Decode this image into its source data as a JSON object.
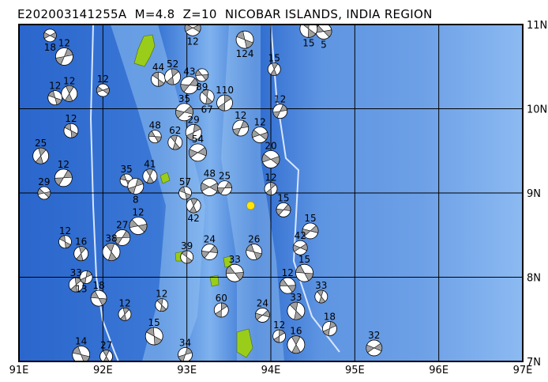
{
  "title": "E202003141255A  M=4.8  Z=10  NICOBAR ISLANDS, INDIA REGION",
  "axes": {
    "lon_ticks": [
      "91E",
      "92E",
      "93E",
      "94E",
      "95E",
      "96E",
      "97E"
    ],
    "lat_ticks": [
      "11N",
      "10N",
      "9N",
      "8N",
      "7N"
    ],
    "lon_range": [
      91,
      97
    ],
    "lat_range": [
      7,
      11
    ]
  },
  "colors": {
    "deep": "#1f5fc8",
    "mid": "#4a86dc",
    "shallow": "#9cc8f2",
    "land": "#9acd1a",
    "epicenter": "#ffe600",
    "compression": "#a0a0a0"
  },
  "epicenter": {
    "lon": 93.76,
    "lat": 8.85
  },
  "events": [
    {
      "lon": 91.37,
      "lat": 10.87,
      "depth": "18"
    },
    {
      "lon": 91.43,
      "lat": 10.13,
      "depth": "12"
    },
    {
      "lon": 91.6,
      "lat": 10.18,
      "depth": "12"
    },
    {
      "lon": 91.54,
      "lat": 10.62,
      "depth": "12"
    },
    {
      "lon": 92.0,
      "lat": 10.22,
      "depth": "12"
    },
    {
      "lon": 91.62,
      "lat": 9.74,
      "depth": "12"
    },
    {
      "lon": 91.26,
      "lat": 9.44,
      "depth": "25"
    },
    {
      "lon": 91.53,
      "lat": 9.18,
      "depth": "12"
    },
    {
      "lon": 91.3,
      "lat": 9.0,
      "depth": "29"
    },
    {
      "lon": 92.66,
      "lat": 10.35,
      "depth": "44"
    },
    {
      "lon": 92.83,
      "lat": 10.38,
      "depth": "52"
    },
    {
      "lon": 93.03,
      "lat": 10.28,
      "depth": "43"
    },
    {
      "lon": 93.18,
      "lat": 10.4,
      "depth": "89"
    },
    {
      "lon": 93.24,
      "lat": 10.14,
      "depth": "67"
    },
    {
      "lon": 93.45,
      "lat": 10.07,
      "depth": "110"
    },
    {
      "lon": 92.97,
      "lat": 9.96,
      "depth": "35"
    },
    {
      "lon": 92.62,
      "lat": 9.67,
      "depth": "48"
    },
    {
      "lon": 92.86,
      "lat": 9.6,
      "depth": "62"
    },
    {
      "lon": 93.08,
      "lat": 9.72,
      "depth": "29"
    },
    {
      "lon": 93.13,
      "lat": 9.48,
      "depth": "54"
    },
    {
      "lon": 92.28,
      "lat": 9.15,
      "depth": "35"
    },
    {
      "lon": 92.56,
      "lat": 9.2,
      "depth": "41"
    },
    {
      "lon": 92.39,
      "lat": 9.08,
      "depth": "8"
    },
    {
      "lon": 93.27,
      "lat": 9.07,
      "depth": "48"
    },
    {
      "lon": 92.98,
      "lat": 9.0,
      "depth": "57"
    },
    {
      "lon": 93.08,
      "lat": 8.85,
      "depth": "42"
    },
    {
      "lon": 93.64,
      "lat": 9.77,
      "depth": "12"
    },
    {
      "lon": 94.0,
      "lat": 9.4,
      "depth": "20"
    },
    {
      "lon": 91.55,
      "lat": 8.42,
      "depth": "12"
    },
    {
      "lon": 91.74,
      "lat": 8.28,
      "depth": "16"
    },
    {
      "lon": 92.23,
      "lat": 8.47,
      "depth": "27"
    },
    {
      "lon": 92.42,
      "lat": 8.61,
      "depth": "12"
    },
    {
      "lon": 93.0,
      "lat": 8.24,
      "depth": "39"
    },
    {
      "lon": 91.68,
      "lat": 7.91,
      "depth": "33"
    },
    {
      "lon": 93.27,
      "lat": 8.3,
      "depth": "24"
    },
    {
      "lon": 93.57,
      "lat": 8.05,
      "depth": "33"
    },
    {
      "lon": 92.7,
      "lat": 7.67,
      "depth": "12"
    },
    {
      "lon": 93.41,
      "lat": 7.61,
      "depth": "60"
    },
    {
      "lon": 94.47,
      "lat": 8.55,
      "depth": "15"
    },
    {
      "lon": 94.4,
      "lat": 8.05,
      "depth": "15"
    },
    {
      "lon": 94.6,
      "lat": 7.77,
      "depth": "33"
    },
    {
      "lon": 94.7,
      "lat": 7.39,
      "depth": "18"
    },
    {
      "lon": 95.23,
      "lat": 7.16,
      "depth": "32"
    },
    {
      "lon": 91.74,
      "lat": 7.08,
      "depth": "14"
    },
    {
      "lon": 92.04,
      "lat": 7.06,
      "depth": "27"
    },
    {
      "lon": 92.98,
      "lat": 7.08,
      "depth": "34"
    },
    {
      "lon": 93.07,
      "lat": 10.96,
      "depth": "12"
    },
    {
      "lon": 93.69,
      "lat": 10.82,
      "depth": "124"
    },
    {
      "lon": 94.04,
      "lat": 10.47,
      "depth": "15"
    },
    {
      "lon": 94.11,
      "lat": 9.97,
      "depth": "12"
    },
    {
      "lon": 93.87,
      "lat": 9.69,
      "depth": "12"
    },
    {
      "lon": 92.61,
      "lat": 7.3,
      "depth": "15"
    },
    {
      "lon": 92.26,
      "lat": 7.56,
      "depth": "12"
    },
    {
      "lon": 93.45,
      "lat": 9.06,
      "depth": "25"
    },
    {
      "lon": 94.63,
      "lat": 10.92,
      "depth": "5"
    },
    {
      "lon": 94.45,
      "lat": 10.95,
      "depth": "15"
    },
    {
      "lon": 94.0,
      "lat": 9.05,
      "depth": "12"
    },
    {
      "lon": 94.15,
      "lat": 8.8,
      "depth": "15"
    },
    {
      "lon": 94.2,
      "lat": 7.9,
      "depth": "12"
    },
    {
      "lon": 94.3,
      "lat": 7.6,
      "depth": "33"
    },
    {
      "lon": 94.1,
      "lat": 7.3,
      "depth": "12"
    },
    {
      "lon": 93.9,
      "lat": 7.55,
      "depth": "24"
    },
    {
      "lon": 91.95,
      "lat": 7.75,
      "depth": "18"
    },
    {
      "lon": 92.1,
      "lat": 8.3,
      "depth": "38"
    },
    {
      "lon": 91.8,
      "lat": 8.0,
      "depth": "13"
    },
    {
      "lon": 94.35,
      "lat": 8.35,
      "depth": "42"
    },
    {
      "lon": 93.8,
      "lat": 8.3,
      "depth": "26"
    },
    {
      "lon": 94.3,
      "lat": 7.2,
      "depth": "16"
    }
  ]
}
